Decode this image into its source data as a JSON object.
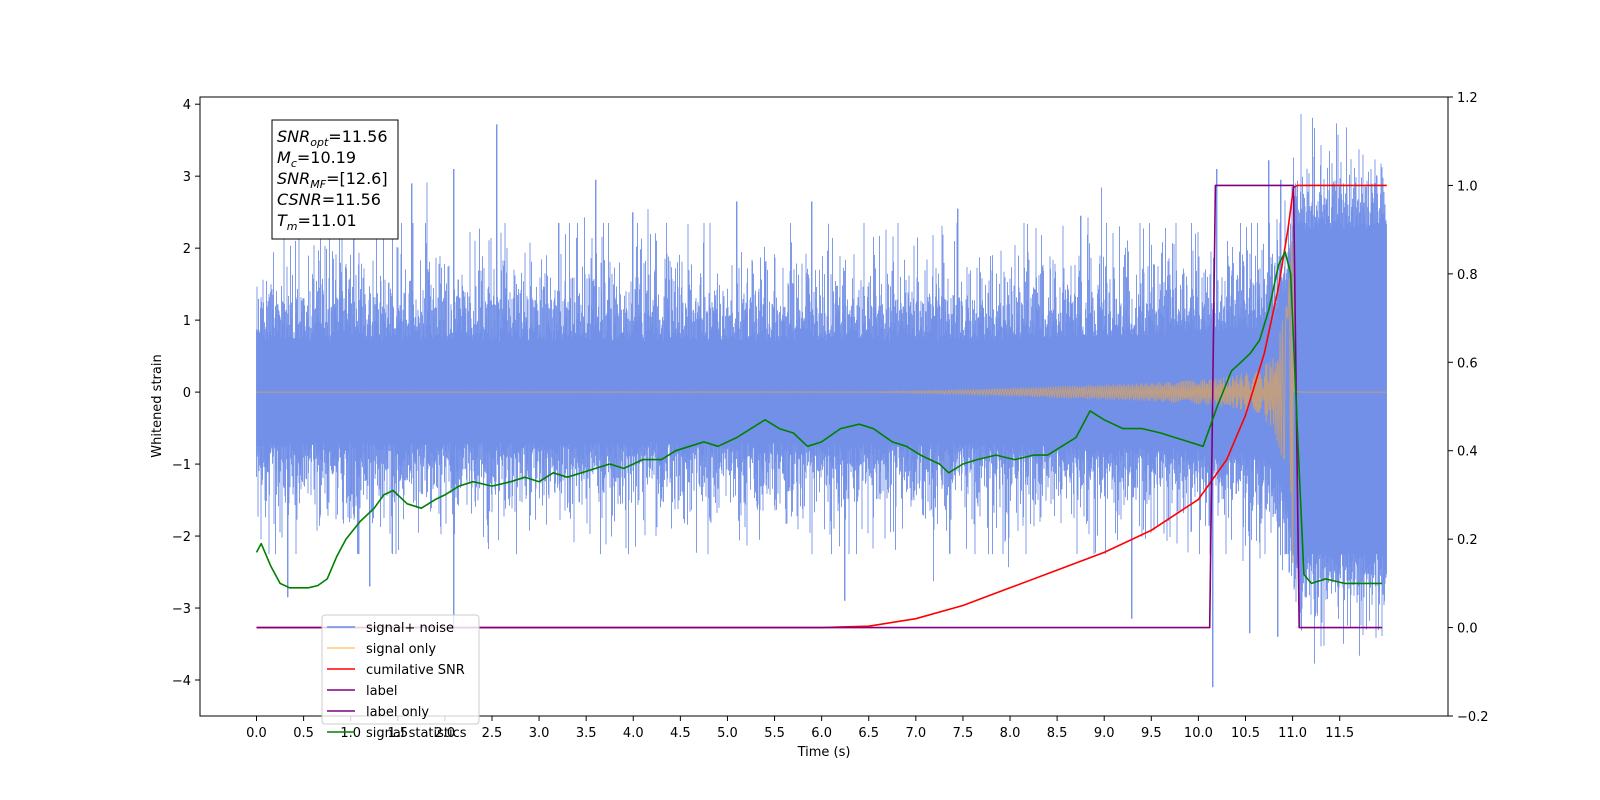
{
  "chart_data": {
    "type": "line",
    "xlabel": "Time (s)",
    "ylabel_left": "Whitened strain",
    "ylabel_right": "",
    "xlim": [
      -0.6,
      12.65
    ],
    "ylim_left": [
      -4.5,
      4.1
    ],
    "ylim_right": [
      -0.2,
      1.2
    ],
    "x_ticks": [
      0.0,
      0.5,
      1.0,
      1.5,
      2.0,
      2.5,
      3.0,
      3.5,
      4.0,
      4.5,
      5.0,
      5.5,
      6.0,
      6.5,
      7.0,
      7.5,
      8.0,
      8.5,
      9.0,
      9.5,
      10.0,
      10.5,
      11.0,
      11.5
    ],
    "x_tick_labels": [
      "0.0",
      "0.5",
      "1.0",
      "1.5",
      "2.0",
      "2.5",
      "3.0",
      "3.5",
      "4.0",
      "4.5",
      "5.0",
      "5.5",
      "6.0",
      "6.5",
      "7.0",
      "7.5",
      "8.0",
      "8.5",
      "9.0",
      "9.5",
      "10.0",
      "10.5",
      "11.0",
      "11.5"
    ],
    "y_left_ticks": [
      -4,
      -3,
      -2,
      -1,
      0,
      1,
      2,
      3,
      4
    ],
    "y_left_tick_labels": [
      "−4",
      "−3",
      "−2",
      "−1",
      "0",
      "1",
      "2",
      "3",
      "4"
    ],
    "y_right_ticks": [
      -0.2,
      0.0,
      0.2,
      0.4,
      0.6,
      0.8,
      1.0,
      1.2
    ],
    "y_right_tick_labels": [
      "−0.2",
      "0.0",
      "0.2",
      "0.4",
      "0.6",
      "0.8",
      "1.0",
      "1.2"
    ],
    "grid": false,
    "legend_position": "lower-left",
    "series": [
      {
        "name": "signal+ noise",
        "axis": "left",
        "color": "#6a8ae6",
        "kind": "noise-band",
        "x_range": [
          0.0,
          12.0
        ],
        "typical_envelope": [
          -1.9,
          2.0
        ],
        "peaks": [
          {
            "x": 0.33,
            "y": -2.85
          },
          {
            "x": 1.03,
            "y": 2.35
          },
          {
            "x": 1.2,
            "y": -2.7
          },
          {
            "x": 1.65,
            "y": 2.9
          },
          {
            "x": 2.1,
            "y": 3.1
          },
          {
            "x": 2.1,
            "y": -3.3
          },
          {
            "x": 2.55,
            "y": 3.72
          },
          {
            "x": 3.6,
            "y": 2.95
          },
          {
            "x": 4.0,
            "y": 2.5
          },
          {
            "x": 5.1,
            "y": 2.65
          },
          {
            "x": 5.9,
            "y": 2.65
          },
          {
            "x": 6.25,
            "y": -2.9
          },
          {
            "x": 7.45,
            "y": 2.55
          },
          {
            "x": 8.75,
            "y": 2.45
          },
          {
            "x": 9.3,
            "y": -3.15
          },
          {
            "x": 10.15,
            "y": -4.1
          },
          {
            "x": 10.2,
            "y": 3.1
          },
          {
            "x": 10.55,
            "y": -3.35
          },
          {
            "x": 10.75,
            "y": 3.22
          },
          {
            "x": 10.85,
            "y": -3.4
          },
          {
            "x": 10.88,
            "y": 2.95
          },
          {
            "x": 11.3,
            "y": 2.5
          }
        ]
      },
      {
        "name": "signal only",
        "axis": "left",
        "color": "#c9a078",
        "kind": "chirp",
        "x_range": [
          0.0,
          12.0
        ],
        "merger_time": 11.01,
        "envelope": {
          "x": [
            0.0,
            6.5,
            7.5,
            8.5,
            9.5,
            10.0,
            10.3,
            10.6,
            10.8,
            10.95,
            11.01
          ],
          "y": [
            0.0,
            0.005,
            0.03,
            0.08,
            0.13,
            0.17,
            0.21,
            0.3,
            0.5,
            1.3,
            2.6
          ]
        }
      },
      {
        "name": "cumilative SNR",
        "axis": "right",
        "color": "#ff0000",
        "x": [
          0.0,
          6.0,
          6.5,
          7.0,
          7.5,
          8.0,
          8.5,
          9.0,
          9.5,
          10.0,
          10.3,
          10.5,
          10.7,
          10.85,
          10.95,
          11.01,
          11.05,
          12.0
        ],
        "values": [
          0.0,
          0.0,
          0.003,
          0.02,
          0.05,
          0.09,
          0.13,
          0.17,
          0.22,
          0.29,
          0.38,
          0.48,
          0.62,
          0.77,
          0.9,
          0.995,
          1.0,
          1.0
        ]
      },
      {
        "name": "label",
        "axis": "right",
        "color": "#800080",
        "x": [
          0.0,
          10.12,
          10.18,
          11.01,
          11.07,
          11.95
        ],
        "values": [
          0.0,
          0.0,
          1.0,
          1.0,
          0.0,
          0.0
        ]
      },
      {
        "name": "label only",
        "axis": "right",
        "color": "#800080",
        "x": [],
        "values": []
      },
      {
        "name": "signal statistics",
        "axis": "right",
        "color": "#008000",
        "x": [
          0.0,
          0.05,
          0.15,
          0.25,
          0.35,
          0.45,
          0.55,
          0.65,
          0.75,
          0.85,
          0.95,
          1.1,
          1.25,
          1.35,
          1.45,
          1.6,
          1.75,
          1.9,
          2.0,
          2.15,
          2.3,
          2.5,
          2.7,
          2.85,
          3.0,
          3.15,
          3.3,
          3.45,
          3.6,
          3.75,
          3.9,
          4.1,
          4.3,
          4.45,
          4.6,
          4.75,
          4.9,
          5.1,
          5.25,
          5.4,
          5.55,
          5.7,
          5.85,
          6.0,
          6.2,
          6.4,
          6.55,
          6.75,
          6.9,
          7.05,
          7.25,
          7.35,
          7.5,
          7.65,
          7.85,
          8.05,
          8.25,
          8.4,
          8.55,
          8.7,
          8.85,
          9.0,
          9.2,
          9.4,
          9.6,
          9.75,
          9.9,
          10.05,
          10.2,
          10.35,
          10.45,
          10.55,
          10.65,
          10.75,
          10.85,
          10.92,
          10.98,
          11.05,
          11.12,
          11.2,
          11.35,
          11.55,
          11.75,
          11.95
        ],
        "values": [
          0.17,
          0.19,
          0.14,
          0.1,
          0.09,
          0.09,
          0.09,
          0.095,
          0.11,
          0.16,
          0.2,
          0.24,
          0.27,
          0.3,
          0.31,
          0.28,
          0.27,
          0.29,
          0.3,
          0.32,
          0.33,
          0.32,
          0.33,
          0.34,
          0.33,
          0.35,
          0.34,
          0.35,
          0.36,
          0.37,
          0.36,
          0.38,
          0.38,
          0.4,
          0.41,
          0.42,
          0.41,
          0.43,
          0.45,
          0.47,
          0.45,
          0.44,
          0.41,
          0.42,
          0.45,
          0.46,
          0.45,
          0.42,
          0.41,
          0.39,
          0.37,
          0.35,
          0.37,
          0.38,
          0.39,
          0.38,
          0.39,
          0.39,
          0.41,
          0.43,
          0.49,
          0.47,
          0.45,
          0.45,
          0.44,
          0.43,
          0.42,
          0.41,
          0.5,
          0.58,
          0.6,
          0.62,
          0.65,
          0.72,
          0.82,
          0.85,
          0.8,
          0.45,
          0.12,
          0.1,
          0.11,
          0.1,
          0.1,
          0.1
        ]
      }
    ],
    "info_box": {
      "lines": [
        {
          "name": "SNR",
          "sub": "opt",
          "value": "=11.56"
        },
        {
          "name": "M",
          "sub": "c",
          "value": "=10.19"
        },
        {
          "name": "SNR",
          "sub": "MF",
          "value": "=[12.6]"
        },
        {
          "name": "CSNR",
          "sub": "",
          "value": "=11.56"
        },
        {
          "name": "T",
          "sub": "m",
          "value": "=11.01"
        }
      ]
    }
  }
}
